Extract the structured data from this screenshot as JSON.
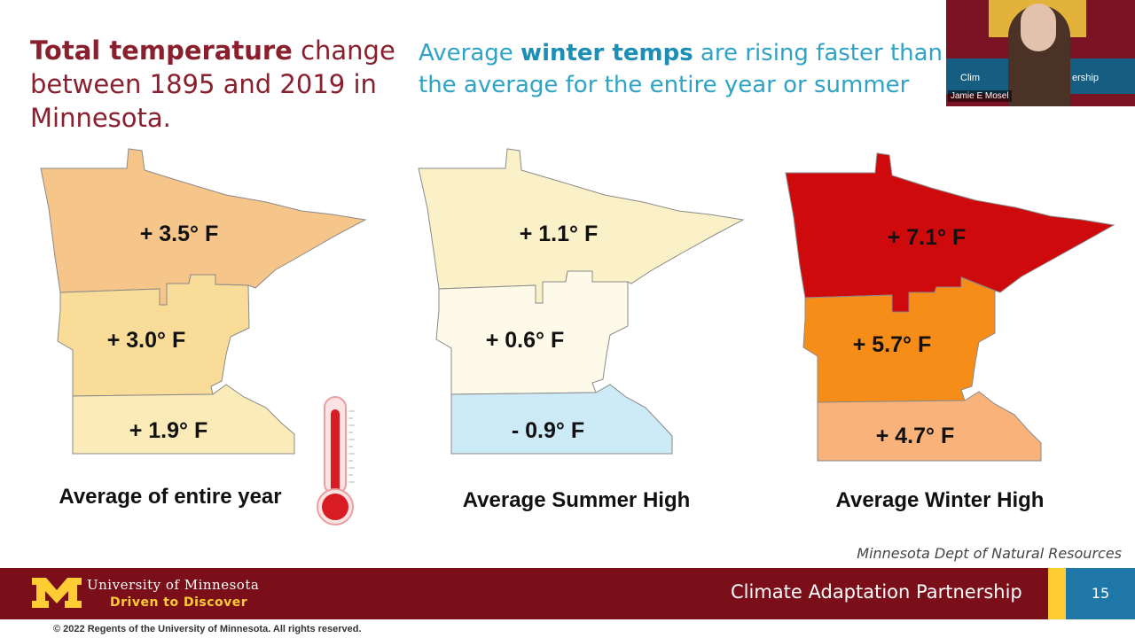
{
  "title_left": {
    "bold": "Total temperature",
    "rest": " change between 1895 and 2019 in Minnesota."
  },
  "title_right": {
    "pre": "Average ",
    "bold": "winter temps",
    "post": " are rising faster than the average for the entire year or summer"
  },
  "maps": [
    {
      "caption": "Average of entire year",
      "regions": [
        "+ 3.5° F",
        "+ 3.0° F",
        "+ 1.9° F"
      ],
      "colors": [
        "#f5c58a",
        "#f8dc98",
        "#fbebb8"
      ]
    },
    {
      "caption": "Average Summer High",
      "regions": [
        "+ 1.1° F",
        "+ 0.6° F",
        "- 0.9° F"
      ],
      "colors": [
        "#fbf1c8",
        "#fdfaea",
        "#cdeaf7"
      ]
    },
    {
      "caption": "Average Winter High",
      "regions": [
        "+ 7.1° F",
        "+ 5.7° F",
        "+ 4.7° F"
      ],
      "colors": [
        "#cf0a0c",
        "#f58d18",
        "#f8b27a"
      ]
    }
  ],
  "source": "Minnesota Dept of Natural Resources",
  "footer": {
    "university": "University of Minnesota",
    "tagline": "Driven to Discover",
    "program": "Climate Adaptation Partnership",
    "slide_number": "15"
  },
  "copyright": "© 2022 Regents of the University of Minnesota. All rights reserved.",
  "video": {
    "participant_name": "Jamie E Mosel",
    "band_left": "Clim",
    "band_right": "ership"
  },
  "icons": [
    "thermometer-icon",
    "umn-m-logo-icon"
  ]
}
